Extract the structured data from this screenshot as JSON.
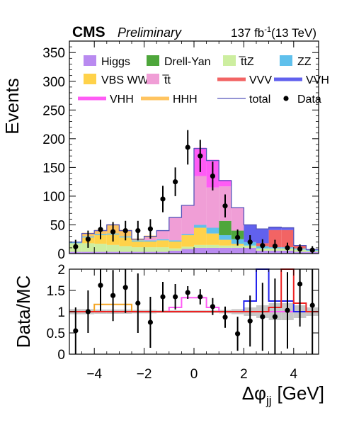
{
  "header": {
    "experiment": "CMS",
    "status": "Preliminary",
    "lumi": "137 fb",
    "lumi_exponent": "-1",
    "energy": "(13 TeV)"
  },
  "chart_data": {
    "type": "histogram-stacked",
    "xlabel": "Δφ",
    "xlabel_sub": "jj",
    "xlabel_unit": "[GeV]",
    "xlim": [
      -5,
      5
    ],
    "bin_edges": [
      -5,
      -4.5,
      -4,
      -3.5,
      -3,
      -2.5,
      -2,
      -1.5,
      -1,
      -0.5,
      0,
      0.5,
      1,
      1.5,
      2,
      2.5,
      3,
      3.5,
      4,
      4.5,
      5
    ],
    "main": {
      "ylabel": "Events",
      "ylim": [
        0,
        370
      ],
      "yticks": [
        0,
        50,
        100,
        150,
        200,
        250,
        300,
        350
      ],
      "series": [
        {
          "name": "Higgs",
          "color": "#b98af0",
          "values": [
            3,
            3,
            3,
            3,
            3,
            3,
            3,
            3,
            5,
            8,
            10,
            10,
            10,
            10,
            10,
            5,
            5,
            5,
            3,
            3
          ]
        },
        {
          "name": "t̅tZ",
          "color": "#cdeea0",
          "values": [
            15,
            15,
            14,
            12,
            10,
            8,
            8,
            8,
            4,
            4,
            5,
            5,
            4,
            4,
            4,
            4,
            4,
            4,
            4,
            2
          ]
        },
        {
          "name": "VBS WW",
          "color": "#ffd24a",
          "values": [
            0,
            10,
            15,
            18,
            15,
            10,
            10,
            12,
            12,
            20,
            30,
            20,
            10,
            3,
            0,
            0,
            0,
            0,
            0,
            0
          ]
        },
        {
          "name": "ZZ",
          "color": "#5fc0ec",
          "values": [
            2,
            2,
            2,
            2,
            2,
            2,
            2,
            2,
            2,
            2,
            5,
            10,
            8,
            8,
            6,
            4,
            2,
            2,
            2,
            2
          ]
        },
        {
          "name": "Drell-Yan",
          "color": "#4ea63b",
          "values": [
            0,
            0,
            0,
            0,
            0,
            0,
            0,
            0,
            0,
            0,
            0,
            0,
            25,
            15,
            0,
            0,
            0,
            0,
            0,
            0
          ]
        },
        {
          "name": "t̅t",
          "color": "#f09ed6",
          "values": [
            0,
            0,
            0,
            0,
            0,
            0,
            5,
            15,
            40,
            50,
            85,
            70,
            60,
            40,
            0,
            0,
            0,
            0,
            0,
            0
          ]
        },
        {
          "name": "VVV",
          "color": "#f26464",
          "values": [
            0,
            0,
            0,
            0,
            0,
            0,
            0,
            0,
            0,
            0,
            0,
            0,
            0,
            0,
            0,
            5,
            30,
            30,
            5,
            0
          ]
        },
        {
          "name": "VVH",
          "color": "#6161ee",
          "values": [
            0,
            0,
            0,
            0,
            0,
            0,
            0,
            0,
            0,
            0,
            0,
            0,
            0,
            0,
            30,
            25,
            5,
            4,
            0,
            0
          ]
        },
        {
          "name": "VHH",
          "color": "#ff5cf5",
          "values": [
            0,
            0,
            0,
            0,
            0,
            0,
            0,
            0,
            0,
            0,
            48,
            47,
            10,
            0,
            0,
            0,
            0,
            0,
            0,
            0
          ]
        },
        {
          "name": "HHH",
          "color": "#ffc460",
          "values": [
            0,
            5,
            6,
            15,
            10,
            2,
            2,
            0,
            0,
            0,
            0,
            0,
            0,
            0,
            0,
            0,
            0,
            0,
            0,
            0
          ]
        }
      ],
      "total": {
        "name": "total",
        "color": "#5555bb"
      },
      "data": {
        "name": "Data",
        "values": [
          12,
          25,
          42,
          38,
          40,
          40,
          43,
          95,
          125,
          185,
          170,
          135,
          83,
          28,
          20,
          14,
          13,
          10,
          8,
          6
        ],
        "errors": [
          12,
          15,
          17,
          17,
          17,
          17,
          17,
          23,
          25,
          30,
          28,
          25,
          20,
          14,
          12,
          11,
          11,
          9,
          8,
          7
        ]
      },
      "legend": [
        {
          "label": "Higgs",
          "type": "box",
          "color": "#b98af0"
        },
        {
          "label": "Drell-Yan",
          "type": "box",
          "color": "#4ea63b"
        },
        {
          "label": "t̅tZ",
          "type": "box",
          "color": "#cdeea0"
        },
        {
          "label": "ZZ",
          "type": "box",
          "color": "#5fc0ec"
        },
        {
          "label": "VBS WW",
          "type": "box",
          "color": "#ffd24a"
        },
        {
          "label": "t̅t",
          "type": "box",
          "color": "#f09ed6"
        },
        {
          "label": "VVV",
          "type": "line-thick",
          "color": "#f26464"
        },
        {
          "label": "VVH",
          "type": "line-thick",
          "color": "#6161ee"
        },
        {
          "label": "VHH",
          "type": "line-thick",
          "color": "#ff5cf5"
        },
        {
          "label": "HHH",
          "type": "line-thick",
          "color": "#ffc460"
        },
        {
          "label": "total",
          "type": "line-thin",
          "color": "#5555bb"
        },
        {
          "label": "Data",
          "type": "dot",
          "color": "#000000"
        }
      ]
    },
    "ratio": {
      "ylabel": "Data/MC",
      "ylim": [
        0,
        2
      ],
      "yticks": [
        0,
        0.5,
        1,
        1.5,
        2
      ],
      "xticks": [
        -4,
        -2,
        0,
        2,
        4
      ],
      "values": [
        0.55,
        1.0,
        1.62,
        1.38,
        1.57,
        1.2,
        0.75,
        1.35,
        1.35,
        1.45,
        1.35,
        1.12,
        0.87,
        0.48,
        0.78,
        0.88,
        0.88,
        1.03,
        1.65,
        1.15
      ],
      "errors": [
        0.55,
        0.5,
        0.6,
        0.6,
        0.6,
        0.7,
        0.6,
        0.35,
        0.3,
        0.15,
        0.18,
        0.2,
        0.25,
        0.4,
        0.6,
        0.8,
        0.9,
        0.9,
        1.0,
        1.2
      ],
      "signal_lines": [
        {
          "name": "HHH",
          "color": "#f5a623",
          "values": [
            1,
            1,
            1.17,
            1.17,
            1.17,
            1,
            1,
            1,
            1,
            1,
            1,
            1,
            1,
            1,
            1,
            1,
            1,
            1,
            1,
            1
          ]
        },
        {
          "name": "VHH",
          "color": "#ff5cf5",
          "values": [
            1,
            1,
            1,
            1,
            1,
            1,
            1,
            1,
            1.1,
            1.33,
            1.33,
            1.1,
            1,
            1,
            1,
            1,
            1,
            1,
            1,
            1
          ]
        },
        {
          "name": "VVH",
          "color": "#2222ee",
          "values": [
            1,
            1,
            1,
            1,
            1,
            1,
            1,
            1,
            1,
            1,
            1,
            1,
            1,
            1,
            1.25,
            2.2,
            1.25,
            1.25,
            1,
            1
          ]
        },
        {
          "name": "VVV",
          "color": "#ee2222",
          "values": [
            1,
            1,
            1,
            1,
            1,
            1,
            1,
            1,
            1,
            1,
            1,
            1,
            1,
            1,
            1,
            1,
            1.1,
            2.2,
            1.2,
            1
          ]
        }
      ],
      "band": {
        "color": "#c8c8c8",
        "low": [
          0.94,
          0.94,
          0.95,
          0.95,
          0.95,
          0.96,
          0.96,
          0.97,
          0.97,
          0.97,
          0.97,
          0.97,
          0.96,
          0.94,
          0.9,
          0.85,
          0.8,
          0.8,
          0.85,
          0.9
        ],
        "high": [
          1.06,
          1.06,
          1.05,
          1.05,
          1.05,
          1.04,
          1.04,
          1.03,
          1.03,
          1.03,
          1.03,
          1.03,
          1.04,
          1.06,
          1.1,
          1.15,
          1.2,
          1.2,
          1.15,
          1.1
        ]
      },
      "reference": {
        "value": 1,
        "color": "#9a7bc0"
      }
    }
  }
}
